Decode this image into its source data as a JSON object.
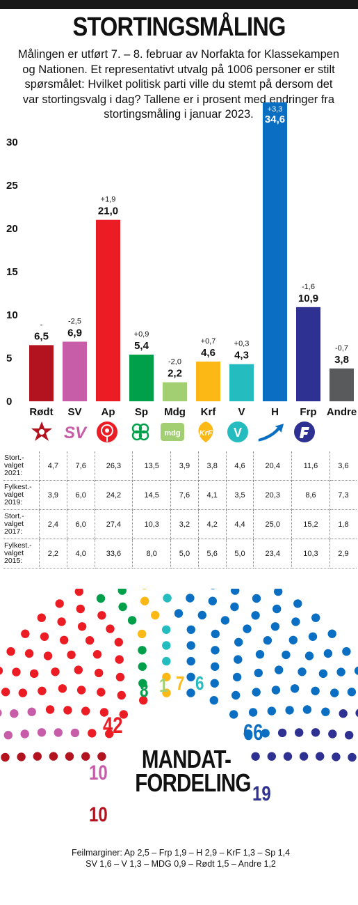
{
  "title": "STORTINGSMÅLING",
  "subtitle": "Målingen er utført 7. – 8. februar av Norfakta for Klassekampen og Nationen. Et representativt utvalg på 1006 personer er stilt spørsmålet: Hvilket politisk parti ville du stemt på dersom det var stortingsvalg i dag? Tallene er i prosent med endringer fra stortingsmåling i januar 2023.",
  "chart_data": {
    "type": "bar",
    "categories": [
      "Rødt",
      "SV",
      "Ap",
      "Sp",
      "Mdg",
      "Krf",
      "V",
      "H",
      "Frp",
      "Andre"
    ],
    "values": [
      6.5,
      6.9,
      21.0,
      5.4,
      2.2,
      4.6,
      4.3,
      34.6,
      10.9,
      3.8
    ],
    "value_labels": [
      "6,5",
      "6,9",
      "21,0",
      "5,4",
      "2,2",
      "4,6",
      "4,3",
      "34,6",
      "10,9",
      "3,8"
    ],
    "changes": [
      "-",
      "-2,5",
      "+1,9",
      "+0,9",
      "-2,0",
      "+0,7",
      "+0,3",
      "+3,3",
      "-1,6",
      "-0,7"
    ],
    "colors": [
      "#b3121f",
      "#c75ca8",
      "#ec1c24",
      "#00a04a",
      "#a3cf73",
      "#fcb814",
      "#24bcbf",
      "#0a6fc2",
      "#2e3192",
      "#595a5c"
    ],
    "yticks": [
      0,
      5,
      10,
      15,
      20,
      25,
      30
    ],
    "ylim": [
      0,
      35
    ],
    "grid": false
  },
  "party_icons": [
    "star-icon",
    "sv-logo-icon",
    "rose-icon",
    "clover-icon",
    "mdg-logo-icon",
    "krf-logo-icon",
    "v-logo-icon",
    "h-arrow-icon",
    "frp-logo-icon",
    ""
  ],
  "icon_text": {
    "sv": "SV",
    "mdg": "mdg",
    "krf": "KrF",
    "v": "V"
  },
  "history": [
    {
      "label_lines": [
        "Stort.-",
        "valget",
        "2021:"
      ],
      "values": [
        "4,7",
        "7,6",
        "26,3",
        "13,5",
        "3,9",
        "3,8",
        "4,6",
        "20,4",
        "11,6",
        "3,6"
      ]
    },
    {
      "label_lines": [
        "Fylkest.-",
        "valget",
        "2019:"
      ],
      "values": [
        "3,9",
        "6,0",
        "24,2",
        "14,5",
        "7,6",
        "4,1",
        "3,5",
        "20,3",
        "8,6",
        "7,3"
      ]
    },
    {
      "label_lines": [
        "Stort.-",
        "valget",
        "2017:"
      ],
      "values": [
        "2,4",
        "6,0",
        "27,4",
        "10,3",
        "3,2",
        "4,2",
        "4,4",
        "25,0",
        "15,2",
        "1,8"
      ]
    },
    {
      "label_lines": [
        "Fylkest.-",
        "valget",
        "2015:"
      ],
      "values": [
        "2,2",
        "4,0",
        "33,6",
        "8,0",
        "5,0",
        "5,6",
        "5,0",
        "23,4",
        "10,3",
        "2,9"
      ]
    }
  ],
  "seats": {
    "heading_lines": [
      "MANDAT-",
      "FORDELING"
    ],
    "parties": [
      {
        "name": "Rødt",
        "seats": 10,
        "color": "#b3121f"
      },
      {
        "name": "SV",
        "seats": 10,
        "color": "#c75ca8"
      },
      {
        "name": "Ap",
        "seats": 42,
        "color": "#ec1c24"
      },
      {
        "name": "Sp",
        "seats": 8,
        "color": "#00a04a"
      },
      {
        "name": "Mdg",
        "seats": 1,
        "color": "#a3cf73"
      },
      {
        "name": "Krf",
        "seats": 7,
        "color": "#fcb814"
      },
      {
        "name": "V",
        "seats": 6,
        "color": "#24bcbf"
      },
      {
        "name": "H",
        "seats": 66,
        "color": "#0a6fc2"
      },
      {
        "name": "Frp",
        "seats": 19,
        "color": "#2e3192"
      }
    ],
    "labels": [
      "42",
      "10",
      "10",
      "8",
      "1",
      "7",
      "6",
      "66",
      "19"
    ]
  },
  "margins_lines": [
    "Feilmarginer: Ap  2,5 – Frp 1,9 – H 2,9 – KrF 1,3 – Sp 1,4",
    "SV 1,6 – V 1,3 – MDG 0,9 – Rødt 1,5 – Andre 1,2"
  ]
}
